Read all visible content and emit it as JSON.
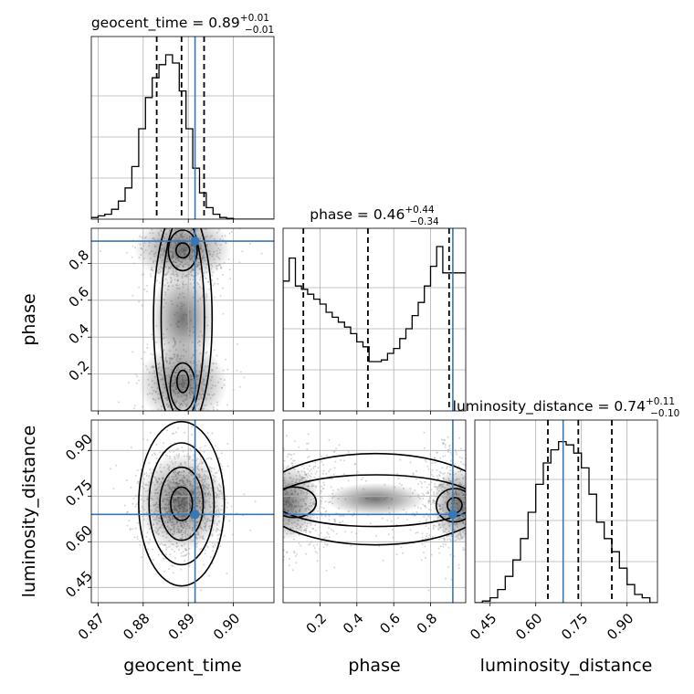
{
  "chart_data": {
    "type": "corner",
    "parameters": [
      "geocent_time",
      "phase",
      "luminosity_distance"
    ],
    "injection": {
      "geocent_time": 0.8915,
      "phase": 0.92,
      "luminosity_distance": 0.69
    },
    "titles": [
      {
        "param": "geocent_time",
        "median": "0.89",
        "plus": "+0.01",
        "minus": "−0.01"
      },
      {
        "param": "phase",
        "median": "0.46",
        "plus": "+0.44",
        "minus": "−0.34"
      },
      {
        "param": "luminosity_distance",
        "median": "0.74",
        "plus": "+0.11",
        "minus": "−0.10"
      }
    ],
    "axes": {
      "geocent_time": {
        "range": [
          0.8685,
          0.909
        ],
        "ticks": [
          0.87,
          0.88,
          0.89,
          0.9
        ],
        "tick_labels": [
          "0.87",
          "0.88",
          "0.89",
          "0.90"
        ]
      },
      "phase": {
        "range": [
          0.0,
          0.99
        ],
        "ticks": [
          0.2,
          0.4,
          0.6,
          0.8
        ],
        "tick_labels": [
          "0.2",
          "0.4",
          "0.6",
          "0.8"
        ]
      },
      "luminosity_distance": {
        "range": [
          0.4,
          1.0
        ],
        "ticks": [
          0.45,
          0.6,
          0.75,
          0.9
        ],
        "tick_labels": [
          "0.45",
          "0.60",
          "0.75",
          "0.90"
        ]
      }
    },
    "quantiles": {
      "geocent_time": [
        0.883,
        0.8885,
        0.8935
      ],
      "phase": [
        0.11,
        0.46,
        0.9
      ],
      "luminosity_distance": [
        0.64,
        0.74,
        0.85
      ]
    },
    "histograms": {
      "geocent_time": {
        "edges_start": 0.8685,
        "bin_width": 0.0015,
        "counts": [
          0.01,
          0.02,
          0.03,
          0.06,
          0.11,
          0.19,
          0.32,
          0.55,
          0.74,
          0.86,
          0.94,
          1.0,
          0.95,
          0.78,
          0.55,
          0.31,
          0.16,
          0.07,
          0.03,
          0.01,
          0.005,
          0.0,
          0.0,
          0.0,
          0.0,
          0.0,
          0.0
        ]
      },
      "phase": {
        "edges_start": 0.0,
        "bin_width": 0.0333,
        "counts": [
          0.79,
          0.93,
          0.76,
          0.74,
          0.71,
          0.68,
          0.65,
          0.6,
          0.57,
          0.54,
          0.51,
          0.47,
          0.42,
          0.39,
          0.3,
          0.3,
          0.31,
          0.35,
          0.38,
          0.44,
          0.5,
          0.58,
          0.66,
          0.76,
          0.88,
          1.0,
          0.84,
          0.84,
          0.84,
          0.84
        ]
      },
      "luminosity_distance": {
        "edges_start": 0.4,
        "bin_width": 0.025,
        "counts": [
          0.0,
          0.01,
          0.03,
          0.08,
          0.16,
          0.26,
          0.39,
          0.55,
          0.72,
          0.85,
          0.93,
          0.98,
          0.96,
          0.91,
          0.82,
          0.66,
          0.49,
          0.39,
          0.31,
          0.21,
          0.11,
          0.05,
          0.03,
          0.0
        ]
      }
    }
  }
}
